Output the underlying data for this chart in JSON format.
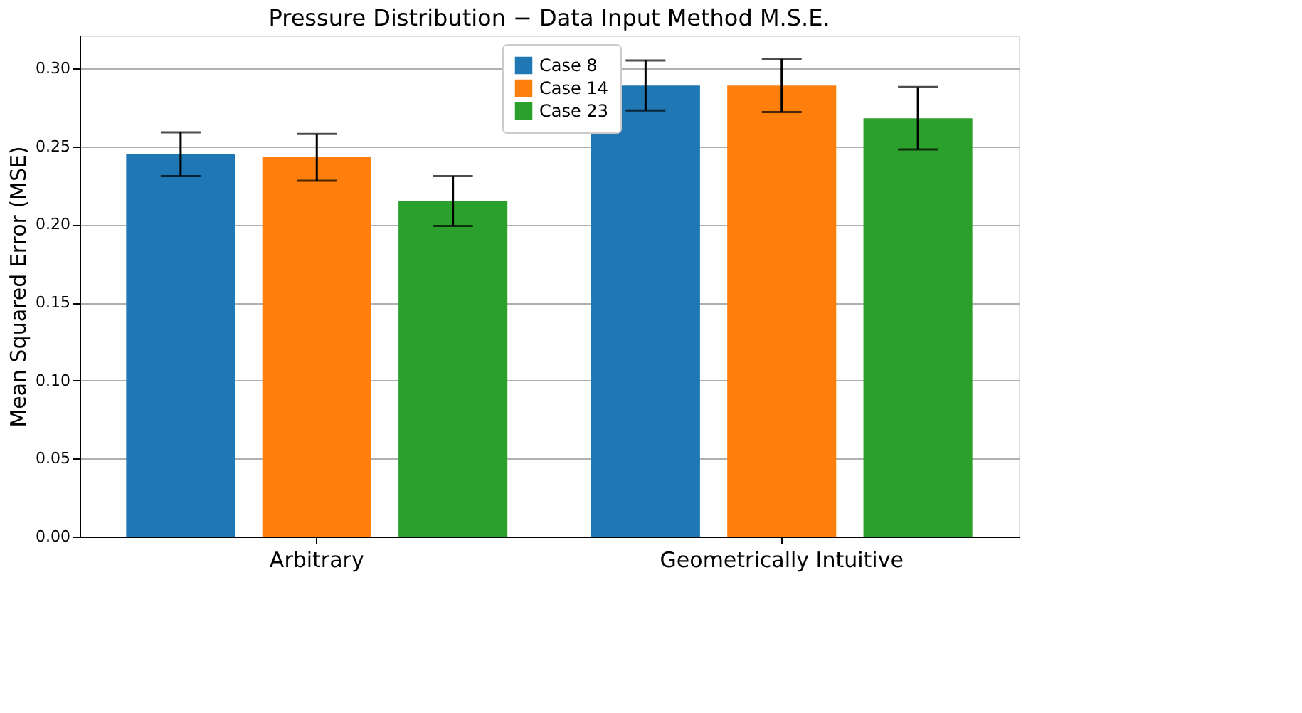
{
  "chart_data": {
    "type": "bar",
    "title": "Pressure Distribution − Data Input Method M.S.E.",
    "ylabel": "Mean Squared Error (MSE)",
    "categories": [
      "Arbitrary",
      "Geometrically Intuitive"
    ],
    "series": [
      {
        "name": "Case 8",
        "color": "#1f77b4",
        "values": [
          0.245,
          0.289
        ],
        "errors": [
          0.014,
          0.016
        ]
      },
      {
        "name": "Case 14",
        "color": "#ff7f0e",
        "values": [
          0.243,
          0.289
        ],
        "errors": [
          0.015,
          0.017
        ]
      },
      {
        "name": "Case 23",
        "color": "#2ca02c",
        "values": [
          0.215,
          0.268
        ],
        "errors": [
          0.016,
          0.02
        ]
      }
    ],
    "ylim": [
      0,
      0.321
    ],
    "yticks": [
      {
        "value": 0,
        "label": "0.00"
      },
      {
        "value": 0.05,
        "label": "0.05"
      },
      {
        "value": 0.1,
        "label": "0.10"
      },
      {
        "value": 0.15,
        "label": "0.15"
      },
      {
        "value": 0.2,
        "label": "0.20"
      },
      {
        "value": 0.25,
        "label": "0.25"
      },
      {
        "value": 0.3,
        "label": "0.30"
      }
    ],
    "grid": "y",
    "legend": "top"
  }
}
